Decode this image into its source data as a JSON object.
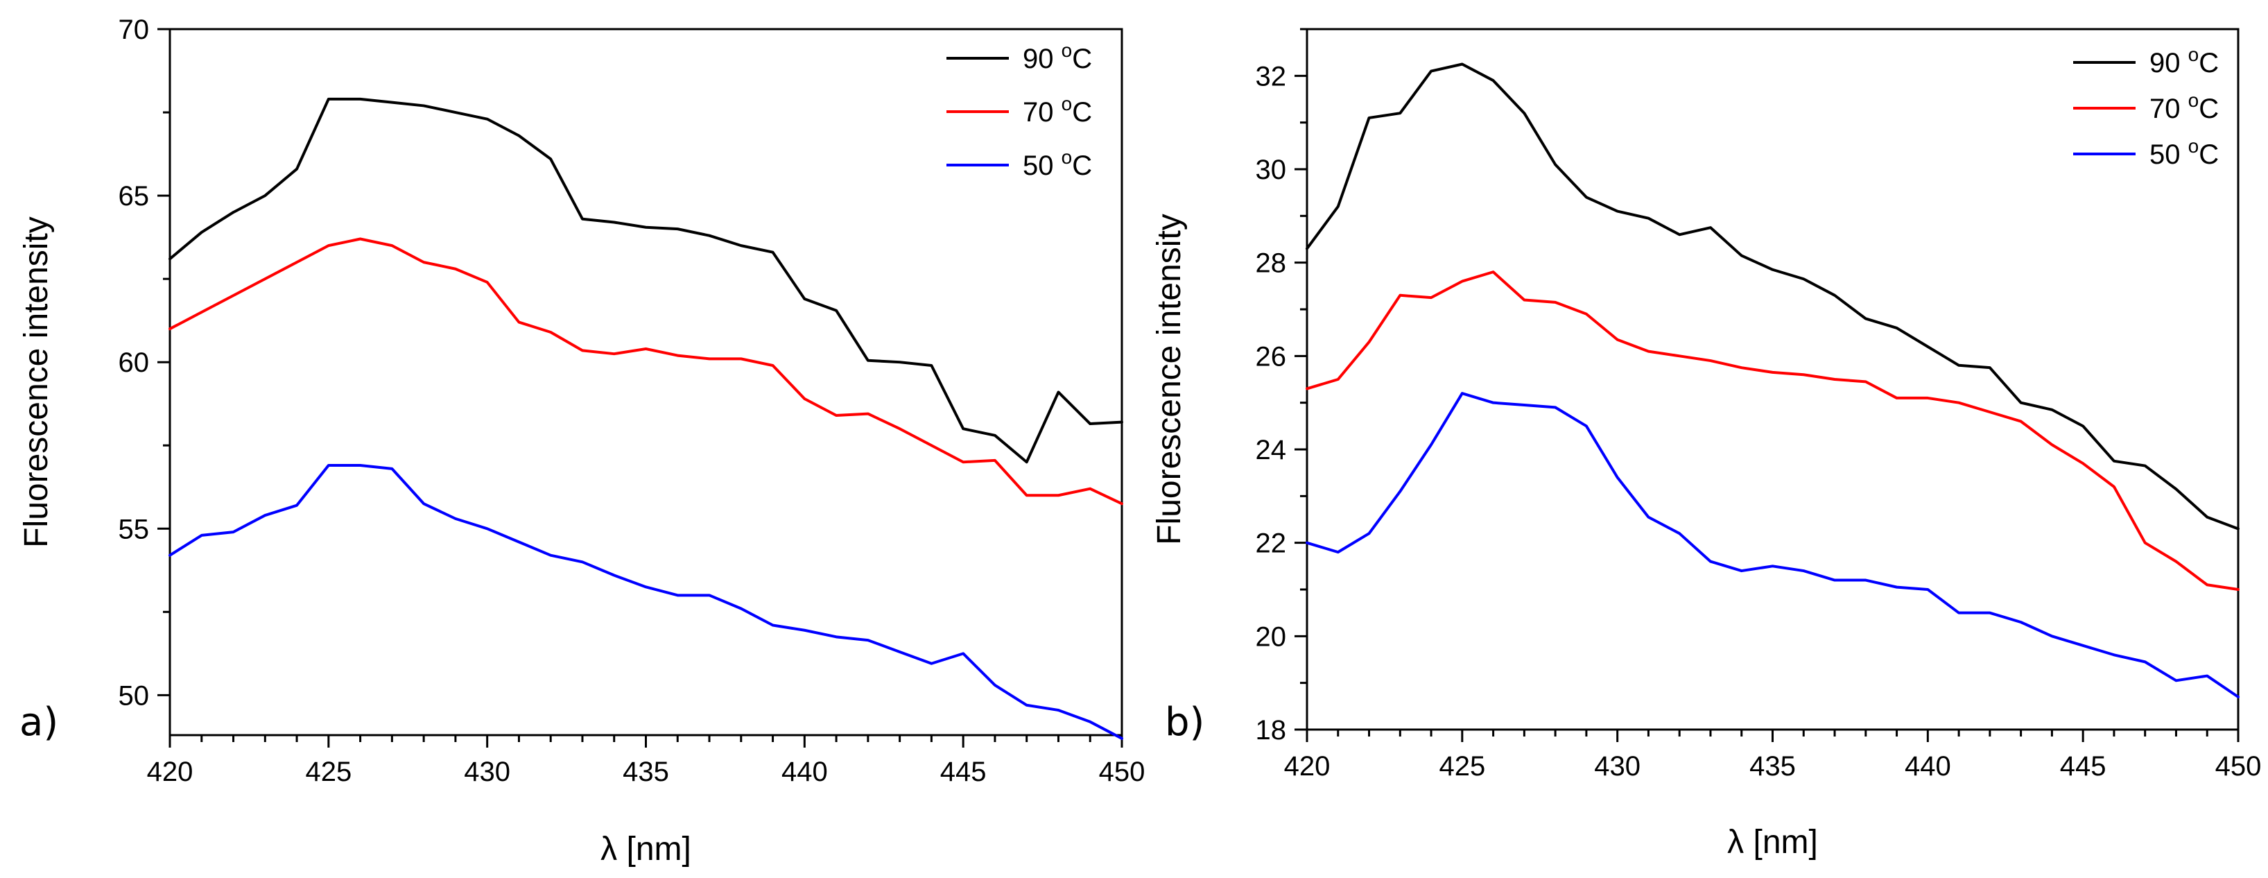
{
  "chart_data": [
    {
      "type": "line",
      "panel_label": "a)",
      "xlabel": "λ [nm]",
      "ylabel": "Fluorescence intensity",
      "xlim": [
        420,
        450
      ],
      "ylim": [
        48.8,
        70
      ],
      "xticks": [
        420,
        425,
        430,
        435,
        440,
        445,
        450
      ],
      "yticks": [
        50,
        55,
        60,
        65,
        70
      ],
      "x": [
        420,
        421,
        422,
        423,
        424,
        425,
        426,
        427,
        428,
        429,
        430,
        431,
        432,
        433,
        434,
        435,
        436,
        437,
        438,
        439,
        440,
        441,
        442,
        443,
        444,
        445,
        446,
        447,
        448,
        449,
        450
      ],
      "legend_position": "top-right",
      "series": [
        {
          "name": "90 °C",
          "degree_label": "90 ",
          "degree_sup": "o",
          "degree_unit": "C",
          "color": "#000000",
          "values": [
            63.1,
            63.9,
            64.5,
            65.0,
            65.8,
            67.9,
            67.9,
            67.8,
            67.7,
            67.5,
            67.3,
            66.8,
            66.1,
            64.3,
            64.2,
            64.05,
            64.0,
            63.8,
            63.5,
            63.3,
            61.9,
            61.55,
            60.05,
            60.0,
            59.9,
            58.0,
            57.8,
            57.0,
            59.1,
            58.15,
            58.2
          ]
        },
        {
          "name": "70 °C",
          "degree_label": "70 ",
          "degree_sup": "o",
          "degree_unit": "C",
          "color": "#ff0000",
          "values": [
            61.0,
            61.5,
            62.0,
            62.5,
            63.0,
            63.5,
            63.7,
            63.5,
            63.0,
            62.8,
            62.4,
            61.2,
            60.9,
            60.35,
            60.25,
            60.4,
            60.2,
            60.1,
            60.1,
            59.9,
            58.9,
            58.4,
            58.45,
            58.0,
            57.5,
            57.0,
            57.05,
            56.0,
            56.0,
            56.2,
            55.75
          ]
        },
        {
          "name": "50 °C",
          "degree_label": "50 ",
          "degree_sup": "o",
          "degree_unit": "C",
          "color": "#0000ff",
          "values": [
            54.2,
            54.8,
            54.9,
            55.4,
            55.7,
            56.9,
            56.9,
            56.8,
            55.75,
            55.3,
            55.0,
            54.6,
            54.2,
            54.0,
            53.6,
            53.25,
            53.0,
            53.0,
            52.6,
            52.1,
            51.95,
            51.75,
            51.65,
            51.3,
            50.95,
            51.25,
            50.3,
            49.7,
            49.55,
            49.2,
            48.7
          ]
        }
      ]
    },
    {
      "type": "line",
      "panel_label": "b)",
      "xlabel": "λ [nm]",
      "ylabel": "Fluorescence intensity",
      "xlim": [
        420,
        450
      ],
      "ylim": [
        18,
        33
      ],
      "xticks": [
        420,
        425,
        430,
        435,
        440,
        445,
        450
      ],
      "yticks": [
        18,
        20,
        22,
        24,
        26,
        28,
        30,
        32
      ],
      "x": [
        420,
        421,
        422,
        423,
        424,
        425,
        426,
        427,
        428,
        429,
        430,
        431,
        432,
        433,
        434,
        435,
        436,
        437,
        438,
        439,
        440,
        441,
        442,
        443,
        444,
        445,
        446,
        447,
        448,
        449,
        450
      ],
      "legend_position": "top-right",
      "series": [
        {
          "name": "90 °C",
          "degree_label": "90 ",
          "degree_sup": "o",
          "degree_unit": "C",
          "color": "#000000",
          "values": [
            28.3,
            29.2,
            31.1,
            31.2,
            32.1,
            32.25,
            31.9,
            31.2,
            30.1,
            29.4,
            29.1,
            28.95,
            28.6,
            28.75,
            28.15,
            27.85,
            27.65,
            27.3,
            26.8,
            26.6,
            26.2,
            25.8,
            25.75,
            25.0,
            24.85,
            24.5,
            23.75,
            23.65,
            23.15,
            22.55,
            22.3
          ]
        },
        {
          "name": "70 °C",
          "degree_label": "70 ",
          "degree_sup": "o",
          "degree_unit": "C",
          "color": "#ff0000",
          "values": [
            25.3,
            25.5,
            26.3,
            27.3,
            27.25,
            27.6,
            27.8,
            27.2,
            27.15,
            26.9,
            26.35,
            26.1,
            26.0,
            25.9,
            25.75,
            25.65,
            25.6,
            25.5,
            25.45,
            25.1,
            25.1,
            25.0,
            24.8,
            24.6,
            24.1,
            23.7,
            23.2,
            22.0,
            21.6,
            21.1,
            21.0
          ]
        },
        {
          "name": "50 °C",
          "degree_label": "50 ",
          "degree_sup": "o",
          "degree_unit": "C",
          "color": "#0000ff",
          "values": [
            22.0,
            21.8,
            22.2,
            23.1,
            24.1,
            25.2,
            25.0,
            24.95,
            24.9,
            24.5,
            23.4,
            22.55,
            22.2,
            21.6,
            21.4,
            21.5,
            21.4,
            21.2,
            21.2,
            21.05,
            21.0,
            20.5,
            20.5,
            20.3,
            20.0,
            19.8,
            19.6,
            19.45,
            19.05,
            19.15,
            18.7
          ]
        }
      ]
    }
  ]
}
